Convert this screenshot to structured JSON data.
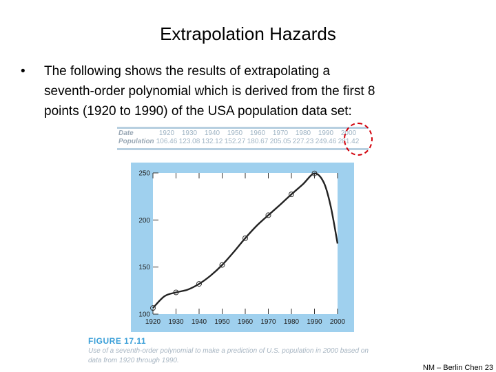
{
  "slide": {
    "title": "Extrapolation Hazards",
    "bullet_marker": "•",
    "bullet_lines": [
      "The following shows the results of extrapolating a",
      "seventh-order polynomial which is derived from the first 8",
      "points (1920 to 1990) of the USA population data set:"
    ],
    "footer": "NM – Berlin Chen 23"
  },
  "data_table": {
    "row_labels": [
      "Date",
      "Population"
    ],
    "dates": [
      "1920",
      "1930",
      "1940",
      "1950",
      "1960",
      "1970",
      "1980",
      "1990",
      "2000"
    ],
    "populations": [
      "106.46",
      "123.08",
      "132.12",
      "152.27",
      "180.67",
      "205.05",
      "227.23",
      "249.46",
      "281.42"
    ]
  },
  "figure": {
    "number": "FIGURE 17.11",
    "caption_lines": [
      "Use of a seventh-order polynomial to make a prediction of U.S. population in 2000 based on",
      "data from 1920 through 1990."
    ]
  },
  "chart_data": {
    "type": "line",
    "title": "",
    "xlabel": "",
    "ylabel": "",
    "xlim": [
      1920,
      2000
    ],
    "ylim": [
      100,
      250
    ],
    "xticks": [
      "1920",
      "1930",
      "1940",
      "1950",
      "1960",
      "1970",
      "1980",
      "1990",
      "2000"
    ],
    "yticks": [
      "100",
      "150",
      "200",
      "250"
    ],
    "grid": false,
    "legend": "none",
    "series": [
      {
        "kind": "markers",
        "x": [
          1920,
          1930,
          1940,
          1950,
          1960,
          1970,
          1980,
          1990
        ],
        "y": [
          106.46,
          123.08,
          132.12,
          152.27,
          180.67,
          205.05,
          227.23,
          249.46
        ]
      },
      {
        "kind": "curve",
        "x": [
          1920,
          1925,
          1930,
          1935,
          1940,
          1945,
          1950,
          1955,
          1960,
          1965,
          1970,
          1975,
          1980,
          1985,
          1990,
          1994,
          1997,
          2000
        ],
        "y": [
          106.46,
          119,
          123.08,
          126,
          132.12,
          141,
          152.27,
          166,
          180.67,
          194,
          205.05,
          216,
          227.23,
          238,
          249.46,
          240,
          215,
          175
        ]
      }
    ]
  },
  "colors": {
    "figure_bg": "#9fd0ee",
    "curve": "#222222",
    "highlight": "#d2000a",
    "figure_label": "#3a9fd8"
  }
}
